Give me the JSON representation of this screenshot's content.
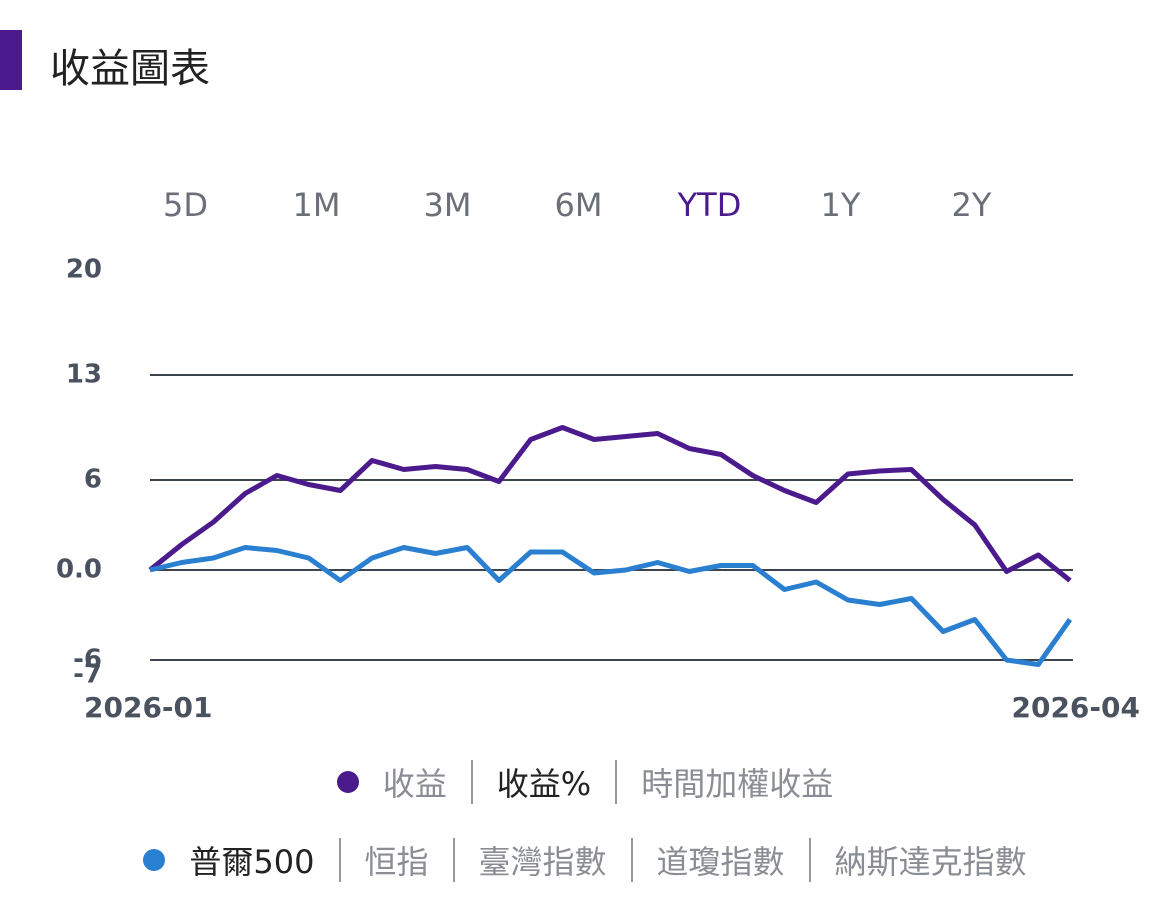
{
  "header": {
    "title": "收益圖表"
  },
  "range_tabs": [
    "5D",
    "1M",
    "3M",
    "6M",
    "YTD",
    "1Y",
    "2Y"
  ],
  "selected_range": "YTD",
  "chart_data": {
    "type": "line",
    "categories": [
      "2026-01",
      null,
      null,
      null,
      null,
      null,
      null,
      null,
      null,
      null,
      null,
      null,
      null,
      null,
      null,
      null,
      null,
      null,
      null,
      null,
      null,
      null,
      null,
      null,
      null,
      null,
      null,
      null,
      null,
      "2026-04"
    ],
    "series": [
      {
        "name": "收益",
        "color": "#4b1a8c",
        "values": [
          0,
          1.7,
          3.2,
          5.1,
          6.3,
          5.7,
          5.3,
          7.3,
          6.7,
          6.9,
          6.7,
          5.9,
          8.7,
          9.5,
          8.7,
          8.9,
          9.1,
          8.1,
          7.7,
          6.3,
          5.3,
          4.5,
          6.4,
          6.6,
          6.7,
          4.7,
          3.0,
          -0.1,
          1.0,
          -0.7
        ]
      },
      {
        "name": "普爾500",
        "color": "#2a7fd0",
        "values": [
          0,
          0.5,
          0.8,
          1.5,
          1.3,
          0.8,
          -0.7,
          0.8,
          1.5,
          1.1,
          1.5,
          -0.7,
          1.2,
          1.2,
          -0.2,
          0,
          0.5,
          -0.1,
          0.3,
          0.3,
          -1.3,
          -0.8,
          -2.0,
          -2.3,
          -1.9,
          -4.1,
          -3.3,
          -6.0,
          -6.3,
          -3.3
        ]
      }
    ],
    "ylim": [
      -7,
      20
    ],
    "yticks": [
      -7,
      -6,
      {
        "value": 0,
        "label": "0.0"
      },
      6,
      13,
      20
    ],
    "grid": true
  },
  "metric_options": [
    "收益%",
    "時間加權收益"
  ],
  "selected_metric": "收益%",
  "benchmark_options": [
    "恒指",
    "臺灣指數",
    "道瓊指數",
    "納斯達克指數"
  ]
}
